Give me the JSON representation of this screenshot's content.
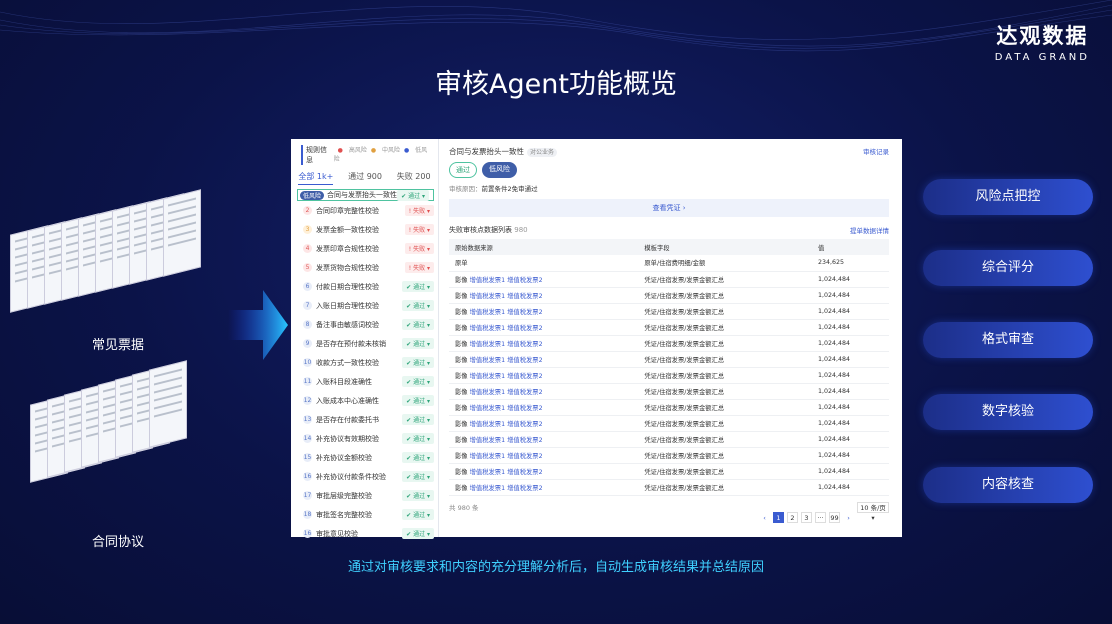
{
  "logo": {
    "cn": "达观数据",
    "en": "DATA GRAND"
  },
  "title": "审核Agent功能概览",
  "caption": "通过对审核要求和内容的充分理解分析后，自动生成审核结果并总结原因",
  "left_labels": {
    "bills": "常见票据",
    "contracts": "合同协议"
  },
  "features": [
    "风险点把控",
    "综合评分",
    "格式审查",
    "数字核验",
    "内容核查"
  ],
  "panel": {
    "rules_title": "规则信息",
    "legend": [
      "高风险",
      "中风险",
      "低风险"
    ],
    "tabs": [
      "全部 1k+",
      "通过 900",
      "失败 200"
    ],
    "selected_tag": "低风险",
    "rules": [
      {
        "n": "",
        "name": "合同与发票抬头一致性校验",
        "status": "通过",
        "pass": true
      },
      {
        "n": "2",
        "name": "合同印章完整性校验",
        "status": "失败",
        "pass": false
      },
      {
        "n": "3",
        "name": "发票金额一致性校验",
        "status": "失败",
        "pass": false
      },
      {
        "n": "4",
        "name": "发票印章合规性校验",
        "status": "失败",
        "pass": false
      },
      {
        "n": "5",
        "name": "发票货物合规性校验",
        "status": "失败",
        "pass": false
      },
      {
        "n": "6",
        "name": "付款日期合理性校验",
        "status": "通过",
        "pass": true
      },
      {
        "n": "7",
        "name": "入账日期合理性校验",
        "status": "通过",
        "pass": true
      },
      {
        "n": "8",
        "name": "备注事由敏感词校验",
        "status": "通过",
        "pass": true
      },
      {
        "n": "9",
        "name": "是否存在预付款未核销",
        "status": "通过",
        "pass": true
      },
      {
        "n": "10",
        "name": "收款方式一致性校验",
        "status": "通过",
        "pass": true
      },
      {
        "n": "11",
        "name": "入账科目段准确性",
        "status": "通过",
        "pass": true
      },
      {
        "n": "12",
        "name": "入账成本中心准确性",
        "status": "通过",
        "pass": true
      },
      {
        "n": "13",
        "name": "是否存在付款委托书",
        "status": "通过",
        "pass": true
      },
      {
        "n": "14",
        "name": "补充协议有效期校验",
        "status": "通过",
        "pass": true
      },
      {
        "n": "15",
        "name": "补充协议金额校验",
        "status": "通过",
        "pass": true
      },
      {
        "n": "16",
        "name": "补充协议付款条件校验",
        "status": "通过",
        "pass": true
      },
      {
        "n": "17",
        "name": "审批层级完整校验",
        "status": "通过",
        "pass": true
      },
      {
        "n": "18",
        "name": "审批签名完整校验",
        "status": "通过",
        "pass": true
      },
      {
        "n": "16",
        "name": "审批意见校验",
        "status": "通过",
        "pass": true
      }
    ],
    "detail": {
      "title": "合同与发票抬头一致性",
      "pill": "对公业务",
      "record_link": "审核记录",
      "pass_badge": "通过",
      "risk_badge": "低风险",
      "reason_label": "审核原因：",
      "reason": "前置条件2免审通过",
      "voucher": "查看凭证 ›",
      "list_title": "失败审核点数据列表",
      "list_count": "980",
      "detail_link": "提单数据详情",
      "columns": [
        "原始数据来源",
        "模板字段",
        "值"
      ],
      "first_row": [
        "原单",
        "原单/住宿费明细/金额",
        "234,625"
      ],
      "row_prefix": "影像",
      "row_links": "增值税发票1 增值税发票2",
      "row_field": "凭证/住宿发票/发票金额汇总",
      "row_value": "1,024,484",
      "total": "共 980 条",
      "pages": [
        "‹",
        "1",
        "2",
        "3",
        "···",
        "99",
        "›"
      ],
      "page_size": "10 条/页 ▾"
    }
  }
}
